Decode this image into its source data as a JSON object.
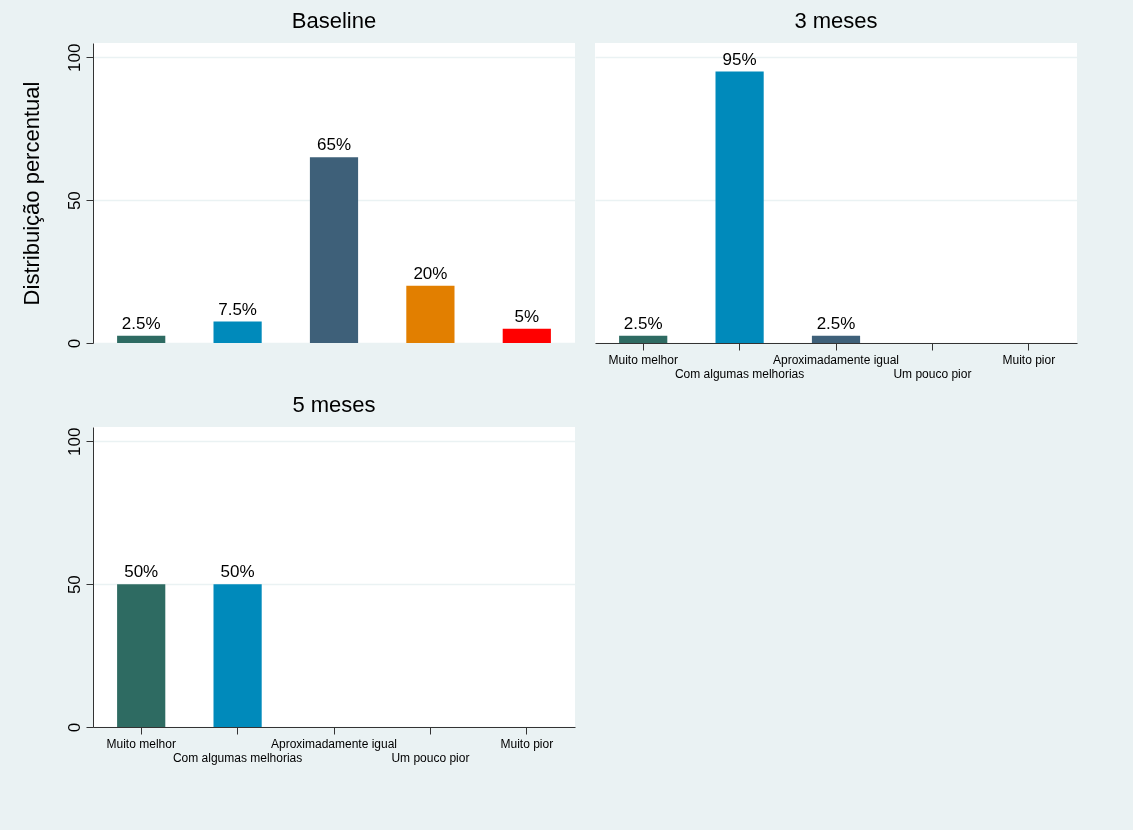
{
  "chart_data": [
    {
      "type": "bar",
      "title": "Baseline",
      "ylabel": "Distribuição percentual",
      "categories": [
        null,
        null,
        null,
        null,
        null
      ],
      "values": [
        2.5,
        7.5,
        65,
        20,
        5
      ],
      "value_labels": [
        "2.5%",
        "7.5%",
        "65%",
        "20%",
        "5%"
      ],
      "colors": [
        "#2e6b62",
        "#008abb",
        "#3e6079",
        "#e27f00",
        "#ff0000"
      ],
      "ylim": [
        0,
        105
      ],
      "yticks": [
        0,
        50,
        100
      ],
      "grid": "y",
      "tick_labels": "y"
    },
    {
      "type": "bar",
      "title": "3 meses",
      "categories": [
        "Muito melhor",
        "Com algumas melhorias",
        "Aproximadamente igual",
        "Um pouco pior",
        "Muito pior"
      ],
      "values": [
        2.5,
        95,
        2.5,
        0,
        0
      ],
      "value_labels": [
        "2.5%",
        "95%",
        "2.5%",
        null,
        null
      ],
      "colors": [
        "#2e6b62",
        "#008abb",
        "#3e6079",
        "#e27f00",
        "#ff0000"
      ],
      "ylim": [
        0,
        105
      ],
      "yticks": [
        0,
        50,
        100
      ],
      "grid": "y",
      "tick_labels": "x"
    },
    {
      "type": "bar",
      "title": "5 meses",
      "categories": [
        "Muito melhor",
        "Com algumas melhorias",
        "Aproximadamente igual",
        "Um pouco pior",
        "Muito pior"
      ],
      "values": [
        50,
        50,
        0,
        0,
        0
      ],
      "value_labels": [
        "50%",
        "50%",
        null,
        null,
        null
      ],
      "colors": [
        "#2e6b62",
        "#008abb",
        "#3e6079",
        "#e27f00",
        "#ff0000"
      ],
      "ylim": [
        0,
        105
      ],
      "yticks": [
        0,
        50,
        100
      ],
      "grid": "y"
    }
  ]
}
